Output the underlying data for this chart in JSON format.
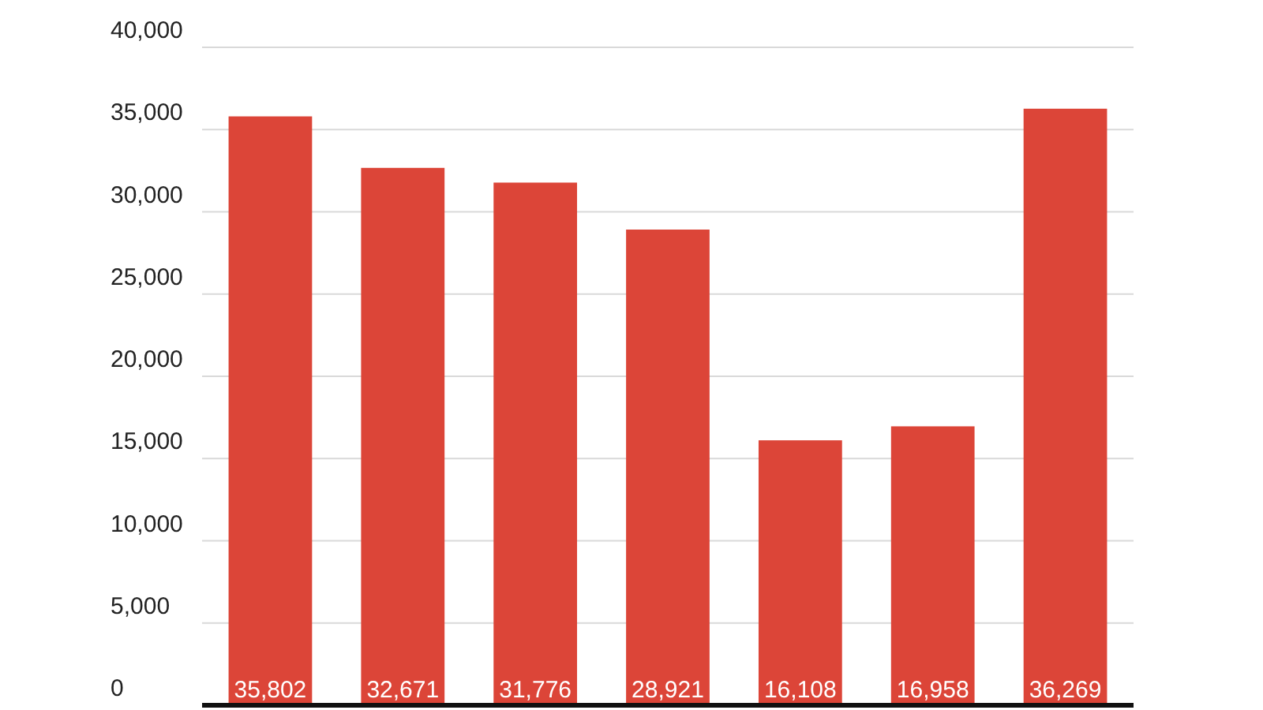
{
  "chart_data": {
    "type": "bar",
    "categories": [
      null,
      null,
      null,
      null,
      null,
      null,
      null
    ],
    "values": [
      35802,
      32671,
      31776,
      28921,
      16108,
      16958,
      36269
    ],
    "color": "#dc4538",
    "ylim": [
      0,
      40000
    ],
    "yticks": [
      0,
      {
        "value": 5000,
        "label": "5,000"
      },
      {
        "value": 10000,
        "label": "10,000"
      },
      {
        "value": 15000,
        "label": "15,000"
      },
      {
        "value": 20000,
        "label": "20,000"
      },
      {
        "value": 25000,
        "label": "25,000"
      },
      {
        "value": 30000,
        "label": "30,000"
      },
      {
        "value": 35000,
        "label": "35,000"
      },
      {
        "value": 40000,
        "label": "40,000"
      }
    ],
    "grid": "y",
    "value_labels": [
      "35,802",
      "32,671",
      "31,776",
      "28,921",
      "16,108",
      "16,958",
      "36,269"
    ]
  }
}
